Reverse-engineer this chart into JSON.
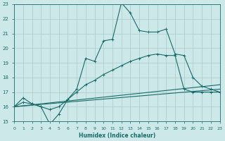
{
  "xlabel": "Humidex (Indice chaleur)",
  "bg_color": "#cce8e8",
  "line_color": "#1a6b6b",
  "grid_color": "#aacccc",
  "xmin": 0,
  "xmax": 23,
  "ymin": 15,
  "ymax": 23,
  "line1_x": [
    0,
    1,
    2,
    3,
    4,
    5,
    6,
    7,
    8,
    9,
    10,
    11,
    12,
    13,
    14,
    15,
    16,
    17,
    18,
    19,
    20,
    21,
    22,
    23
  ],
  "line1_y": [
    16.0,
    16.6,
    16.2,
    16.0,
    14.8,
    15.5,
    16.5,
    17.2,
    19.3,
    19.1,
    20.5,
    20.6,
    23.1,
    22.4,
    21.2,
    21.1,
    21.1,
    21.3,
    19.6,
    19.5,
    18.0,
    17.4,
    17.2,
    17.0
  ],
  "line1_markers": [
    0,
    1,
    2,
    3,
    4,
    5,
    6,
    7,
    8,
    9,
    10,
    11,
    12,
    13,
    14,
    15,
    16,
    17,
    18,
    19,
    20,
    21,
    22,
    23
  ],
  "line2_x": [
    0,
    1,
    2,
    3,
    4,
    5,
    6,
    7,
    8,
    9,
    10,
    11,
    12,
    13,
    14,
    15,
    16,
    17,
    18,
    19,
    20,
    21,
    22,
    23
  ],
  "line2_y": [
    16.0,
    16.3,
    16.2,
    16.0,
    15.8,
    16.0,
    16.5,
    17.0,
    17.5,
    17.8,
    18.2,
    18.5,
    18.8,
    19.1,
    19.3,
    19.5,
    19.6,
    19.5,
    19.5,
    17.2,
    17.0,
    17.0,
    17.0,
    17.0
  ],
  "line3_x": [
    0,
    23
  ],
  "line3_y": [
    16.0,
    17.5
  ],
  "line4_x": [
    0,
    23
  ],
  "line4_y": [
    16.0,
    17.2
  ]
}
